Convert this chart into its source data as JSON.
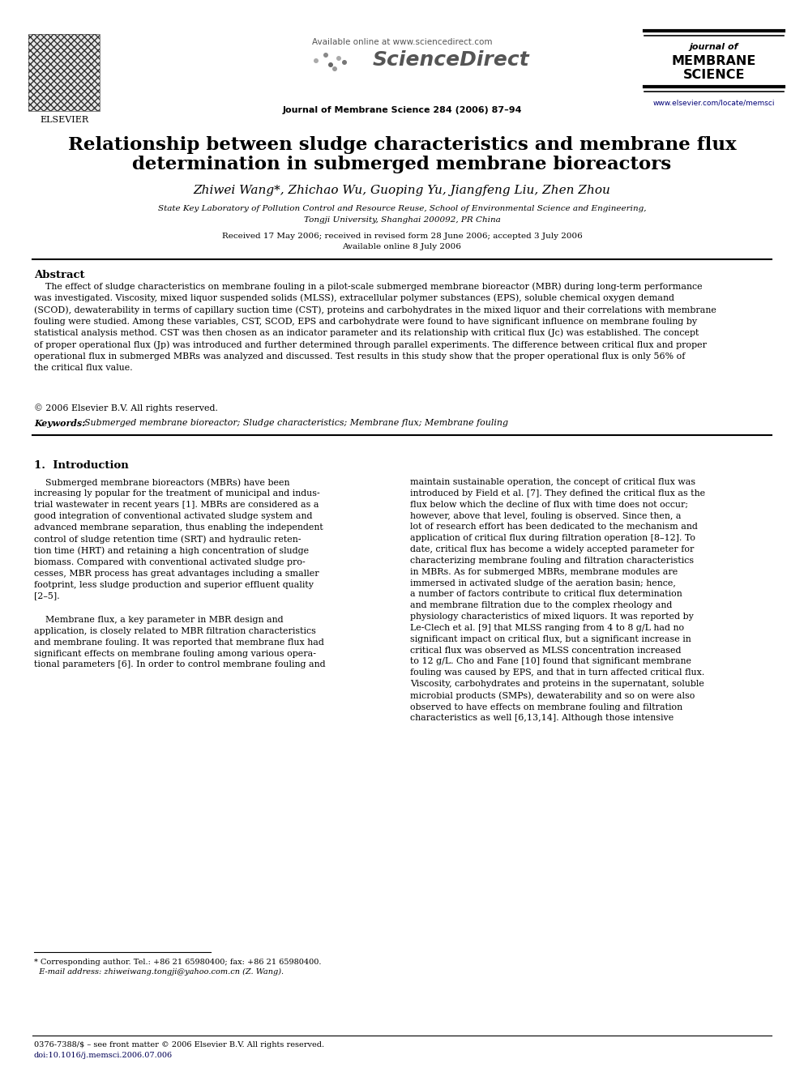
{
  "page_bg": "#ffffff",
  "header": {
    "available_online": "Available online at www.sciencedirect.com",
    "journal_info": "Journal of Membrane Science 284 (2006) 87–94",
    "journal_name_line1": "journal of",
    "journal_name_line2": "MEMBRANE",
    "journal_name_line3": "SCIENCE",
    "elsevier_label": "ELSEVIER",
    "website": "www.elsevier.com/locate/memsci"
  },
  "title_line1": "Relationship between sludge characteristics and membrane flux",
  "title_line2": "determination in submerged membrane bioreactors",
  "authors": "Zhiwei Wang*, Zhichao Wu, Guoping Yu, Jiangfeng Liu, Zhen Zhou",
  "affiliation_line1": "State Key Laboratory of Pollution Control and Resource Reuse, School of Environmental Science and Engineering,",
  "affiliation_line2": "Tongji University, Shanghai 200092, PR China",
  "received": "Received 17 May 2006; received in revised form 28 June 2006; accepted 3 July 2006",
  "available_online_date": "Available online 8 July 2006",
  "abstract_label": "Abstract",
  "copyright": "© 2006 Elsevier B.V. All rights reserved.",
  "keywords_label": "Keywords:",
  "keywords_text": "  Submerged membrane bioreactor; Sludge characteristics; Membrane flux; Membrane fouling",
  "section1_label": "1.  Introduction",
  "footnote_line1": "* Corresponding author. Tel.: +86 21 65980400; fax: +86 21 65980400.",
  "footnote_line2": "  E-mail address: zhiweiwang.tongji@yahoo.com.cn (Z. Wang).",
  "footer_line1": "0376-7388/$ – see front matter © 2006 Elsevier B.V. All rights reserved.",
  "footer_line2": "doi:10.1016/j.memsci.2006.07.006",
  "abstract_para": "    The effect of sludge characteristics on membrane fouling in a pilot-scale submerged membrane bioreactor (MBR) during long-term performance\nwas investigated. Viscosity, mixed liquor suspended solids (MLSS), extracellular polymer substances (EPS), soluble chemical oxygen demand\n(SCOD), dewaterability in terms of capillary suction time (CST), proteins and carbohydrates in the mixed liquor and their correlations with membrane\nfouling were studied. Among these variables, CST, SCOD, EPS and carbohydrate were found to have significant influence on membrane fouling by\nstatistical analysis method. CST was then chosen as an indicator parameter and its relationship with critical flux (Jc) was established. The concept\nof proper operational flux (Jp) was introduced and further determined through parallel experiments. The difference between critical flux and proper\noperational flux in submerged MBRs was analyzed and discussed. Test results in this study show that the proper operational flux is only 56% of\nthe critical flux value.",
  "intro_left_para1": "    Submerged membrane bioreactors (MBRs) have been\nincreasing ly popular for the treatment of municipal and indus-\ntrial wastewater in recent years [1]. MBRs are considered as a\ngood integration of conventional activated sludge system and\nadvanced membrane separation, thus enabling the independent\ncontrol of sludge retention time (SRT) and hydraulic reten-\ntion time (HRT) and retaining a high concentration of sludge\nbiomass. Compared with conventional activated sludge pro-\ncesses, MBR process has great advantages including a smaller\nfootprint, less sludge production and superior effluent quality\n[2–5].",
  "intro_left_para2": "    Membrane flux, a key parameter in MBR design and\napplication, is closely related to MBR filtration characteristics\nand membrane fouling. It was reported that membrane flux had\nsignificant effects on membrane fouling among various opera-\ntional parameters [6]. In order to control membrane fouling and",
  "intro_right_para": "maintain sustainable operation, the concept of critical flux was\nintroduced by Field et al. [7]. They defined the critical flux as the\nflux below which the decline of flux with time does not occur;\nhowever, above that level, fouling is observed. Since then, a\nlot of research effort has been dedicated to the mechanism and\napplication of critical flux during filtration operation [8–12]. To\ndate, critical flux has become a widely accepted parameter for\ncharacterizing membrane fouling and filtration characteristics\nin MBRs. As for submerged MBRs, membrane modules are\nimmersed in activated sludge of the aeration basin; hence,\na number of factors contribute to critical flux determination\nand membrane filtration due to the complex rheology and\nphysiology characteristics of mixed liquors. It was reported by\nLe-Clech et al. [9] that MLSS ranging from 4 to 8 g/L had no\nsignificant impact on critical flux, but a significant increase in\ncritical flux was observed as MLSS concentration increased\nto 12 g/L. Cho and Fane [10] found that significant membrane\nfouling was caused by EPS, and that in turn affected critical flux.\nViscosity, carbohydrates and proteins in the supernatant, soluble\nmicrobial products (SMPs), dewaterability and so on were also\nobserved to have effects on membrane fouling and filtration\ncharacteristics as well [6,13,14]. Although those intensive"
}
